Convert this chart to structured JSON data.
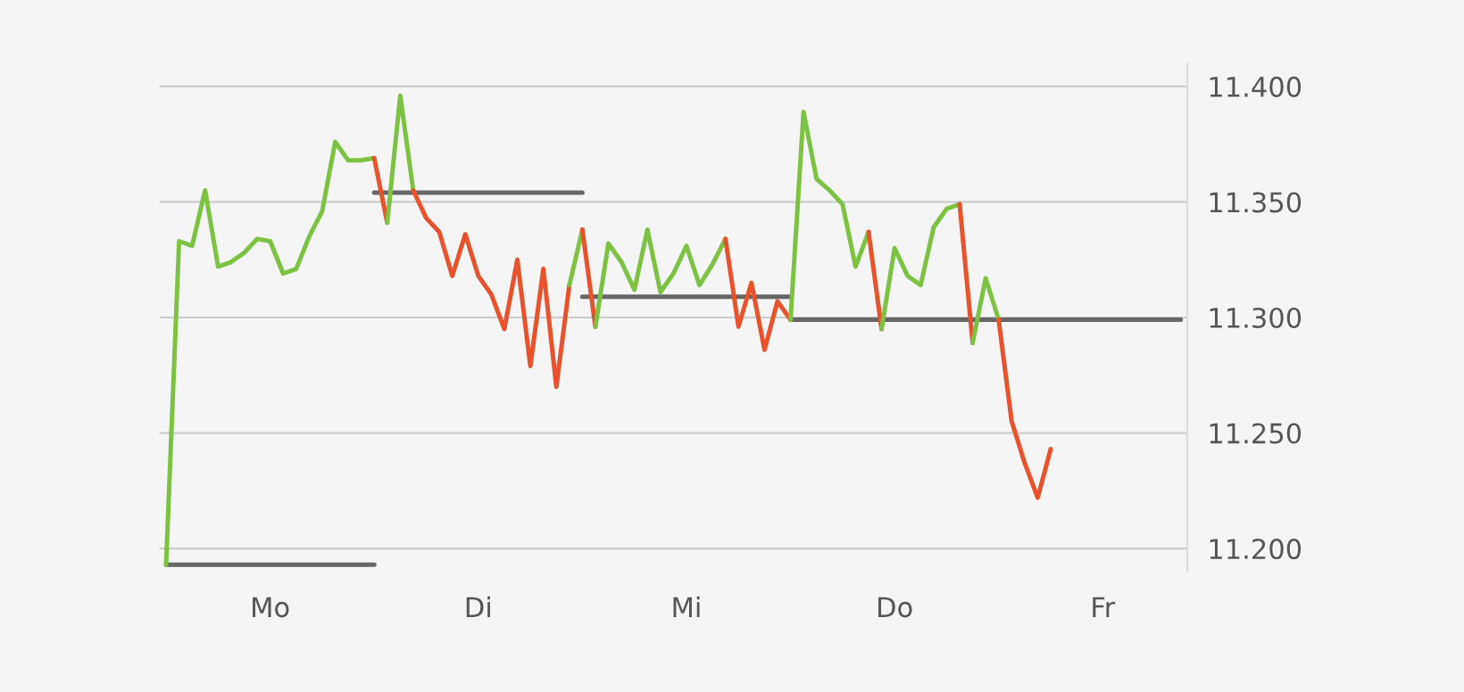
{
  "chart_data": {
    "type": "line",
    "categories": [
      null,
      null,
      null,
      null,
      null,
      null,
      null,
      null,
      "Mo",
      null,
      null,
      null,
      null,
      null,
      null,
      null,
      null,
      null,
      null,
      null,
      null,
      null,
      null,
      null,
      "Di",
      null,
      null,
      null,
      null,
      null,
      null,
      null,
      null,
      null,
      null,
      null,
      null,
      null,
      null,
      null,
      "Mi",
      null,
      null,
      null,
      null,
      null,
      null,
      null,
      null,
      null,
      null,
      null,
      null,
      null,
      null,
      null,
      "Do",
      null,
      null,
      null,
      null,
      null,
      null,
      null,
      null,
      null,
      null,
      null,
      null,
      null,
      null,
      null,
      "Fr",
      null,
      null,
      null,
      null,
      null,
      null
    ],
    "ylim": [
      11.19,
      11.41
    ],
    "yticks": [
      {
        "value": 11.2,
        "label": "11.200"
      },
      {
        "value": 11.25,
        "label": "11.250"
      },
      {
        "value": 11.3,
        "label": "11.300"
      },
      {
        "value": 11.35,
        "label": "11.350"
      },
      {
        "value": 11.4,
        "label": "11.400"
      }
    ],
    "grid": "y",
    "series": [
      {
        "color": "#666666",
        "values": [
          11.193,
          11.193,
          11.193,
          11.193,
          11.193,
          11.193,
          11.193,
          11.193,
          11.193,
          11.193,
          11.193,
          11.193,
          11.193,
          11.193,
          11.193,
          11.193,
          11.193,
          null,
          null,
          null,
          null,
          null,
          null,
          null,
          null,
          null,
          null,
          null,
          null,
          null,
          null,
          null,
          null,
          null,
          null,
          null,
          null,
          null,
          null,
          null,
          null,
          null,
          null,
          null,
          null,
          null,
          null,
          null,
          null,
          null,
          null,
          null,
          null,
          null,
          null,
          null,
          null,
          null,
          null,
          null,
          null,
          null,
          null,
          null,
          null,
          null,
          null,
          null,
          null,
          null,
          null,
          null,
          null,
          null,
          null,
          null,
          null,
          null,
          null
        ]
      },
      {
        "color": "#666666",
        "values": [
          null,
          null,
          null,
          null,
          null,
          null,
          null,
          null,
          null,
          null,
          null,
          null,
          null,
          null,
          null,
          null,
          11.354,
          11.354,
          11.354,
          11.354,
          11.354,
          11.354,
          11.354,
          11.354,
          11.354,
          11.354,
          11.354,
          11.354,
          11.354,
          11.354,
          11.354,
          11.354,
          11.354,
          null,
          null,
          null,
          null,
          null,
          null,
          null,
          null,
          null,
          null,
          null,
          null,
          null,
          null,
          null,
          null,
          null,
          null,
          null,
          null,
          null,
          null,
          null,
          null,
          null,
          null,
          null,
          null,
          null,
          null,
          null,
          null,
          null,
          null,
          null,
          null,
          null,
          null,
          null,
          null,
          null,
          null,
          null,
          null,
          null,
          null
        ]
      },
      {
        "color": "#666666",
        "values": [
          null,
          null,
          null,
          null,
          null,
          null,
          null,
          null,
          null,
          null,
          null,
          null,
          null,
          null,
          null,
          null,
          null,
          null,
          null,
          null,
          null,
          null,
          null,
          null,
          null,
          null,
          null,
          null,
          null,
          null,
          null,
          null,
          11.309,
          11.309,
          11.309,
          11.309,
          11.309,
          11.309,
          11.309,
          11.309,
          11.309,
          11.309,
          11.309,
          11.309,
          11.309,
          11.309,
          11.309,
          11.309,
          11.309,
          null,
          null,
          null,
          null,
          null,
          null,
          null,
          null,
          null,
          null,
          null,
          null,
          null,
          null,
          null,
          null,
          null,
          null,
          null,
          null,
          null,
          null,
          null,
          null,
          null,
          null,
          null,
          null,
          null,
          null
        ]
      },
      {
        "color": "#666666",
        "values": [
          null,
          null,
          null,
          null,
          null,
          null,
          null,
          null,
          null,
          null,
          null,
          null,
          null,
          null,
          null,
          null,
          null,
          null,
          null,
          null,
          null,
          null,
          null,
          null,
          null,
          null,
          null,
          null,
          null,
          null,
          null,
          null,
          null,
          null,
          null,
          null,
          null,
          null,
          null,
          null,
          null,
          null,
          null,
          null,
          null,
          null,
          null,
          null,
          11.299,
          11.299,
          11.299,
          11.299,
          11.299,
          11.299,
          11.299,
          11.299,
          11.299,
          11.299,
          11.299,
          11.299,
          11.299,
          11.299,
          11.299,
          11.299,
          11.299,
          11.299,
          11.299,
          11.299,
          11.299,
          11.299,
          11.299,
          11.299,
          11.299,
          11.299,
          11.299,
          11.299,
          11.299,
          11.299,
          11.299
        ]
      },
      {
        "color": "#7dc242",
        "values": [
          11.193,
          11.333,
          11.331,
          11.355,
          11.322,
          11.324,
          11.328,
          11.334,
          11.333,
          11.319,
          11.321,
          11.335,
          11.346,
          11.376,
          11.368,
          11.368,
          11.369,
          null,
          null,
          null,
          null,
          null,
          null,
          null,
          null,
          null,
          null,
          null,
          null,
          null,
          null,
          null,
          null,
          null,
          null,
          null,
          null,
          null,
          null,
          null,
          null,
          null,
          null,
          null,
          null,
          null,
          null,
          null,
          null,
          null,
          null,
          null,
          null,
          null,
          null,
          null,
          null,
          null,
          null,
          null,
          null,
          null,
          null,
          null,
          null,
          null,
          null,
          null,
          null,
          null,
          null,
          null,
          null,
          null,
          null,
          null,
          null,
          null,
          null
        ]
      },
      {
        "color": "#e8522c",
        "values": [
          null,
          null,
          null,
          null,
          null,
          null,
          null,
          null,
          null,
          null,
          null,
          null,
          null,
          null,
          null,
          null,
          11.369,
          11.341,
          null,
          null,
          null,
          null,
          null,
          null,
          null,
          null,
          null,
          null,
          null,
          null,
          null,
          null,
          null,
          null,
          null,
          null,
          null,
          null,
          null,
          null,
          null,
          null,
          null,
          null,
          null,
          null,
          null,
          null,
          null,
          null,
          null,
          null,
          null,
          null,
          null,
          null,
          null,
          null,
          null,
          null,
          null,
          null,
          null,
          null,
          null,
          null,
          null,
          null,
          null,
          null,
          null,
          null,
          null,
          null,
          null,
          null,
          null,
          null,
          null
        ]
      },
      {
        "color": "#7dc242",
        "values": [
          null,
          null,
          null,
          null,
          null,
          null,
          null,
          null,
          null,
          null,
          null,
          null,
          null,
          null,
          null,
          null,
          null,
          11.341,
          11.396,
          11.355,
          null,
          null,
          null,
          null,
          null,
          null,
          null,
          null,
          null,
          null,
          null,
          null,
          null,
          null,
          null,
          null,
          null,
          null,
          null,
          null,
          null,
          null,
          null,
          null,
          null,
          null,
          null,
          null,
          null,
          null,
          null,
          null,
          null,
          null,
          null,
          null,
          null,
          null,
          null,
          null,
          null,
          null,
          null,
          null,
          null,
          null,
          null,
          null,
          null,
          null,
          null,
          null,
          null,
          null,
          null,
          null,
          null,
          null,
          null
        ]
      },
      {
        "color": "#e8522c",
        "values": [
          null,
          null,
          null,
          null,
          null,
          null,
          null,
          null,
          null,
          null,
          null,
          null,
          null,
          null,
          null,
          null,
          null,
          null,
          null,
          11.355,
          11.343,
          11.337,
          11.318,
          11.336,
          11.318,
          11.31,
          11.295,
          11.325,
          11.279,
          11.321,
          11.27,
          11.314,
          null,
          null,
          null,
          null,
          null,
          null,
          null,
          null,
          null,
          null,
          null,
          null,
          null,
          null,
          null,
          null,
          null,
          null,
          null,
          null,
          null,
          null,
          null,
          null,
          null,
          null,
          null,
          null,
          null,
          null,
          null,
          null,
          null,
          null,
          null,
          null,
          null,
          null,
          null,
          null,
          null,
          null,
          null,
          null,
          null,
          null,
          null
        ]
      },
      {
        "color": "#7dc242",
        "values": [
          null,
          null,
          null,
          null,
          null,
          null,
          null,
          null,
          null,
          null,
          null,
          null,
          null,
          null,
          null,
          null,
          null,
          null,
          null,
          null,
          null,
          null,
          null,
          null,
          null,
          null,
          null,
          null,
          null,
          null,
          null,
          11.314,
          11.338,
          null,
          null,
          null,
          null,
          null,
          null,
          null,
          null,
          null,
          null,
          null,
          null,
          null,
          null,
          null,
          null,
          null,
          null,
          null,
          null,
          null,
          null,
          null,
          null,
          null,
          null,
          null,
          null,
          null,
          null,
          null,
          null,
          null,
          null,
          null,
          null,
          null,
          null,
          null,
          null,
          null,
          null,
          null,
          null,
          null,
          null
        ]
      },
      {
        "color": "#e8522c",
        "values": [
          null,
          null,
          null,
          null,
          null,
          null,
          null,
          null,
          null,
          null,
          null,
          null,
          null,
          null,
          null,
          null,
          null,
          null,
          null,
          null,
          null,
          null,
          null,
          null,
          null,
          null,
          null,
          null,
          null,
          null,
          null,
          null,
          11.338,
          11.296,
          null,
          null,
          null,
          null,
          null,
          null,
          null,
          null,
          null,
          null,
          null,
          null,
          null,
          null,
          null,
          null,
          null,
          null,
          null,
          null,
          null,
          null,
          null,
          null,
          null,
          null,
          null,
          null,
          null,
          null,
          null,
          null,
          null,
          null,
          null,
          null,
          null,
          null,
          null,
          null,
          null,
          null,
          null,
          null,
          null
        ]
      },
      {
        "color": "#7dc242",
        "values": [
          null,
          null,
          null,
          null,
          null,
          null,
          null,
          null,
          null,
          null,
          null,
          null,
          null,
          null,
          null,
          null,
          null,
          null,
          null,
          null,
          null,
          null,
          null,
          null,
          null,
          null,
          null,
          null,
          null,
          null,
          null,
          null,
          null,
          11.296,
          11.332,
          11.324,
          11.312,
          11.338,
          11.311,
          11.319,
          11.331,
          11.314,
          11.323,
          11.334,
          null,
          null,
          null,
          null,
          null,
          null,
          null,
          null,
          null,
          null,
          null,
          null,
          null,
          null,
          null,
          null,
          null,
          null,
          null,
          null,
          null,
          null,
          null,
          null,
          null,
          null,
          null,
          null,
          null,
          null,
          null,
          null,
          null,
          null,
          null
        ]
      },
      {
        "color": "#e8522c",
        "values": [
          null,
          null,
          null,
          null,
          null,
          null,
          null,
          null,
          null,
          null,
          null,
          null,
          null,
          null,
          null,
          null,
          null,
          null,
          null,
          null,
          null,
          null,
          null,
          null,
          null,
          null,
          null,
          null,
          null,
          null,
          null,
          null,
          null,
          null,
          null,
          null,
          null,
          null,
          null,
          null,
          null,
          null,
          null,
          11.334,
          11.296,
          11.315,
          11.286,
          11.307,
          11.299,
          null,
          null,
          null,
          null,
          null,
          null,
          null,
          null,
          null,
          null,
          null,
          null,
          null,
          null,
          null,
          null,
          null,
          null,
          null,
          null,
          null,
          null,
          null,
          null,
          null,
          null,
          null,
          null,
          null,
          null
        ]
      },
      {
        "color": "#7dc242",
        "values": [
          null,
          null,
          null,
          null,
          null,
          null,
          null,
          null,
          null,
          null,
          null,
          null,
          null,
          null,
          null,
          null,
          null,
          null,
          null,
          null,
          null,
          null,
          null,
          null,
          null,
          null,
          null,
          null,
          null,
          null,
          null,
          null,
          null,
          null,
          null,
          null,
          null,
          null,
          null,
          null,
          null,
          null,
          null,
          null,
          null,
          null,
          null,
          null,
          11.299,
          11.389,
          11.36,
          11.355,
          11.349,
          11.322,
          11.337,
          null,
          null,
          null,
          null,
          null,
          null,
          null,
          null,
          null,
          null,
          null,
          null,
          null,
          null,
          null,
          null,
          null,
          null,
          null,
          null,
          null,
          null,
          null,
          null
        ]
      },
      {
        "color": "#e8522c",
        "values": [
          null,
          null,
          null,
          null,
          null,
          null,
          null,
          null,
          null,
          null,
          null,
          null,
          null,
          null,
          null,
          null,
          null,
          null,
          null,
          null,
          null,
          null,
          null,
          null,
          null,
          null,
          null,
          null,
          null,
          null,
          null,
          null,
          null,
          null,
          null,
          null,
          null,
          null,
          null,
          null,
          null,
          null,
          null,
          null,
          null,
          null,
          null,
          null,
          null,
          null,
          null,
          null,
          null,
          null,
          11.337,
          11.295,
          null,
          null,
          null,
          null,
          null,
          null,
          null,
          null,
          null,
          null,
          null,
          null,
          null,
          null,
          null,
          null,
          null,
          null,
          null,
          null,
          null,
          null,
          null
        ]
      },
      {
        "color": "#7dc242",
        "values": [
          null,
          null,
          null,
          null,
          null,
          null,
          null,
          null,
          null,
          null,
          null,
          null,
          null,
          null,
          null,
          null,
          null,
          null,
          null,
          null,
          null,
          null,
          null,
          null,
          null,
          null,
          null,
          null,
          null,
          null,
          null,
          null,
          null,
          null,
          null,
          null,
          null,
          null,
          null,
          null,
          null,
          null,
          null,
          null,
          null,
          null,
          null,
          null,
          null,
          null,
          null,
          null,
          null,
          null,
          null,
          11.295,
          11.33,
          11.318,
          11.314,
          11.339,
          11.347,
          11.349,
          null,
          null,
          null,
          null,
          null,
          null,
          null,
          null,
          null,
          null,
          null,
          null,
          null,
          null,
          null,
          null,
          null
        ]
      },
      {
        "color": "#e8522c",
        "values": [
          null,
          null,
          null,
          null,
          null,
          null,
          null,
          null,
          null,
          null,
          null,
          null,
          null,
          null,
          null,
          null,
          null,
          null,
          null,
          null,
          null,
          null,
          null,
          null,
          null,
          null,
          null,
          null,
          null,
          null,
          null,
          null,
          null,
          null,
          null,
          null,
          null,
          null,
          null,
          null,
          null,
          null,
          null,
          null,
          null,
          null,
          null,
          null,
          null,
          null,
          null,
          null,
          null,
          null,
          null,
          null,
          null,
          null,
          null,
          null,
          null,
          11.349,
          11.289,
          null,
          null,
          null,
          null,
          null,
          null,
          null,
          null,
          null,
          null,
          null,
          null,
          null,
          null,
          null,
          null
        ]
      },
      {
        "color": "#7dc242",
        "values": [
          null,
          null,
          null,
          null,
          null,
          null,
          null,
          null,
          null,
          null,
          null,
          null,
          null,
          null,
          null,
          null,
          null,
          null,
          null,
          null,
          null,
          null,
          null,
          null,
          null,
          null,
          null,
          null,
          null,
          null,
          null,
          null,
          null,
          null,
          null,
          null,
          null,
          null,
          null,
          null,
          null,
          null,
          null,
          null,
          null,
          null,
          null,
          null,
          null,
          null,
          null,
          null,
          null,
          null,
          null,
          null,
          null,
          null,
          null,
          null,
          null,
          null,
          11.289,
          11.317,
          11.299,
          null,
          null,
          null,
          null,
          null,
          null,
          null,
          null,
          null,
          null,
          null,
          null,
          null,
          null
        ]
      },
      {
        "color": "#e8522c",
        "values": [
          null,
          null,
          null,
          null,
          null,
          null,
          null,
          null,
          null,
          null,
          null,
          null,
          null,
          null,
          null,
          null,
          null,
          null,
          null,
          null,
          null,
          null,
          null,
          null,
          null,
          null,
          null,
          null,
          null,
          null,
          null,
          null,
          null,
          null,
          null,
          null,
          null,
          null,
          null,
          null,
          null,
          null,
          null,
          null,
          null,
          null,
          null,
          null,
          null,
          null,
          null,
          null,
          null,
          null,
          null,
          null,
          null,
          null,
          null,
          null,
          null,
          null,
          null,
          null,
          11.299,
          11.255,
          11.237,
          11.222,
          11.243,
          null,
          null,
          null,
          null,
          null,
          null,
          null,
          null,
          null,
          null
        ]
      }
    ]
  }
}
